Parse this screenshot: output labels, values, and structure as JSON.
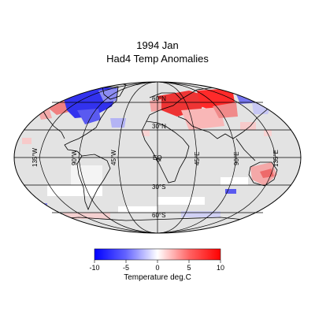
{
  "title": {
    "period": "1994   Jan",
    "dataset": "Had4 Temp Anomalies"
  },
  "map": {
    "projection": "robinson",
    "ocean_color": "#e3e3e3",
    "coast_color": "#000000",
    "graticule_color": "#000000",
    "lat_labels": [
      "60°N",
      "30°N",
      "EQ",
      "30°S",
      "60°S"
    ],
    "lon_labels": [
      "135°W",
      "90°W",
      "45°W",
      "0",
      "45°E",
      "90°E",
      "135°E"
    ]
  },
  "anomalies": [
    {
      "region": "Eastern Canada / Greenland",
      "anomaly": -8
    },
    {
      "region": "Alaska / NW Canada",
      "anomaly": 6
    },
    {
      "region": "Scandinavia / N Europe",
      "anomaly": 5
    },
    {
      "region": "Western Siberia",
      "anomaly": 7
    },
    {
      "region": "Eastern Siberia",
      "anomaly": -4
    },
    {
      "region": "Central Asia",
      "anomaly": 4
    },
    {
      "region": "Australia",
      "anomaly": 3
    },
    {
      "region": "Southern Ocean (Indian sector)",
      "anomaly": -5
    }
  ],
  "colorbar": {
    "ticks": [
      "-10",
      "-5",
      "0",
      "5",
      "10"
    ],
    "label": "Temperature deg.C",
    "low_color": "#0000ff",
    "high_color": "#ff0000"
  }
}
